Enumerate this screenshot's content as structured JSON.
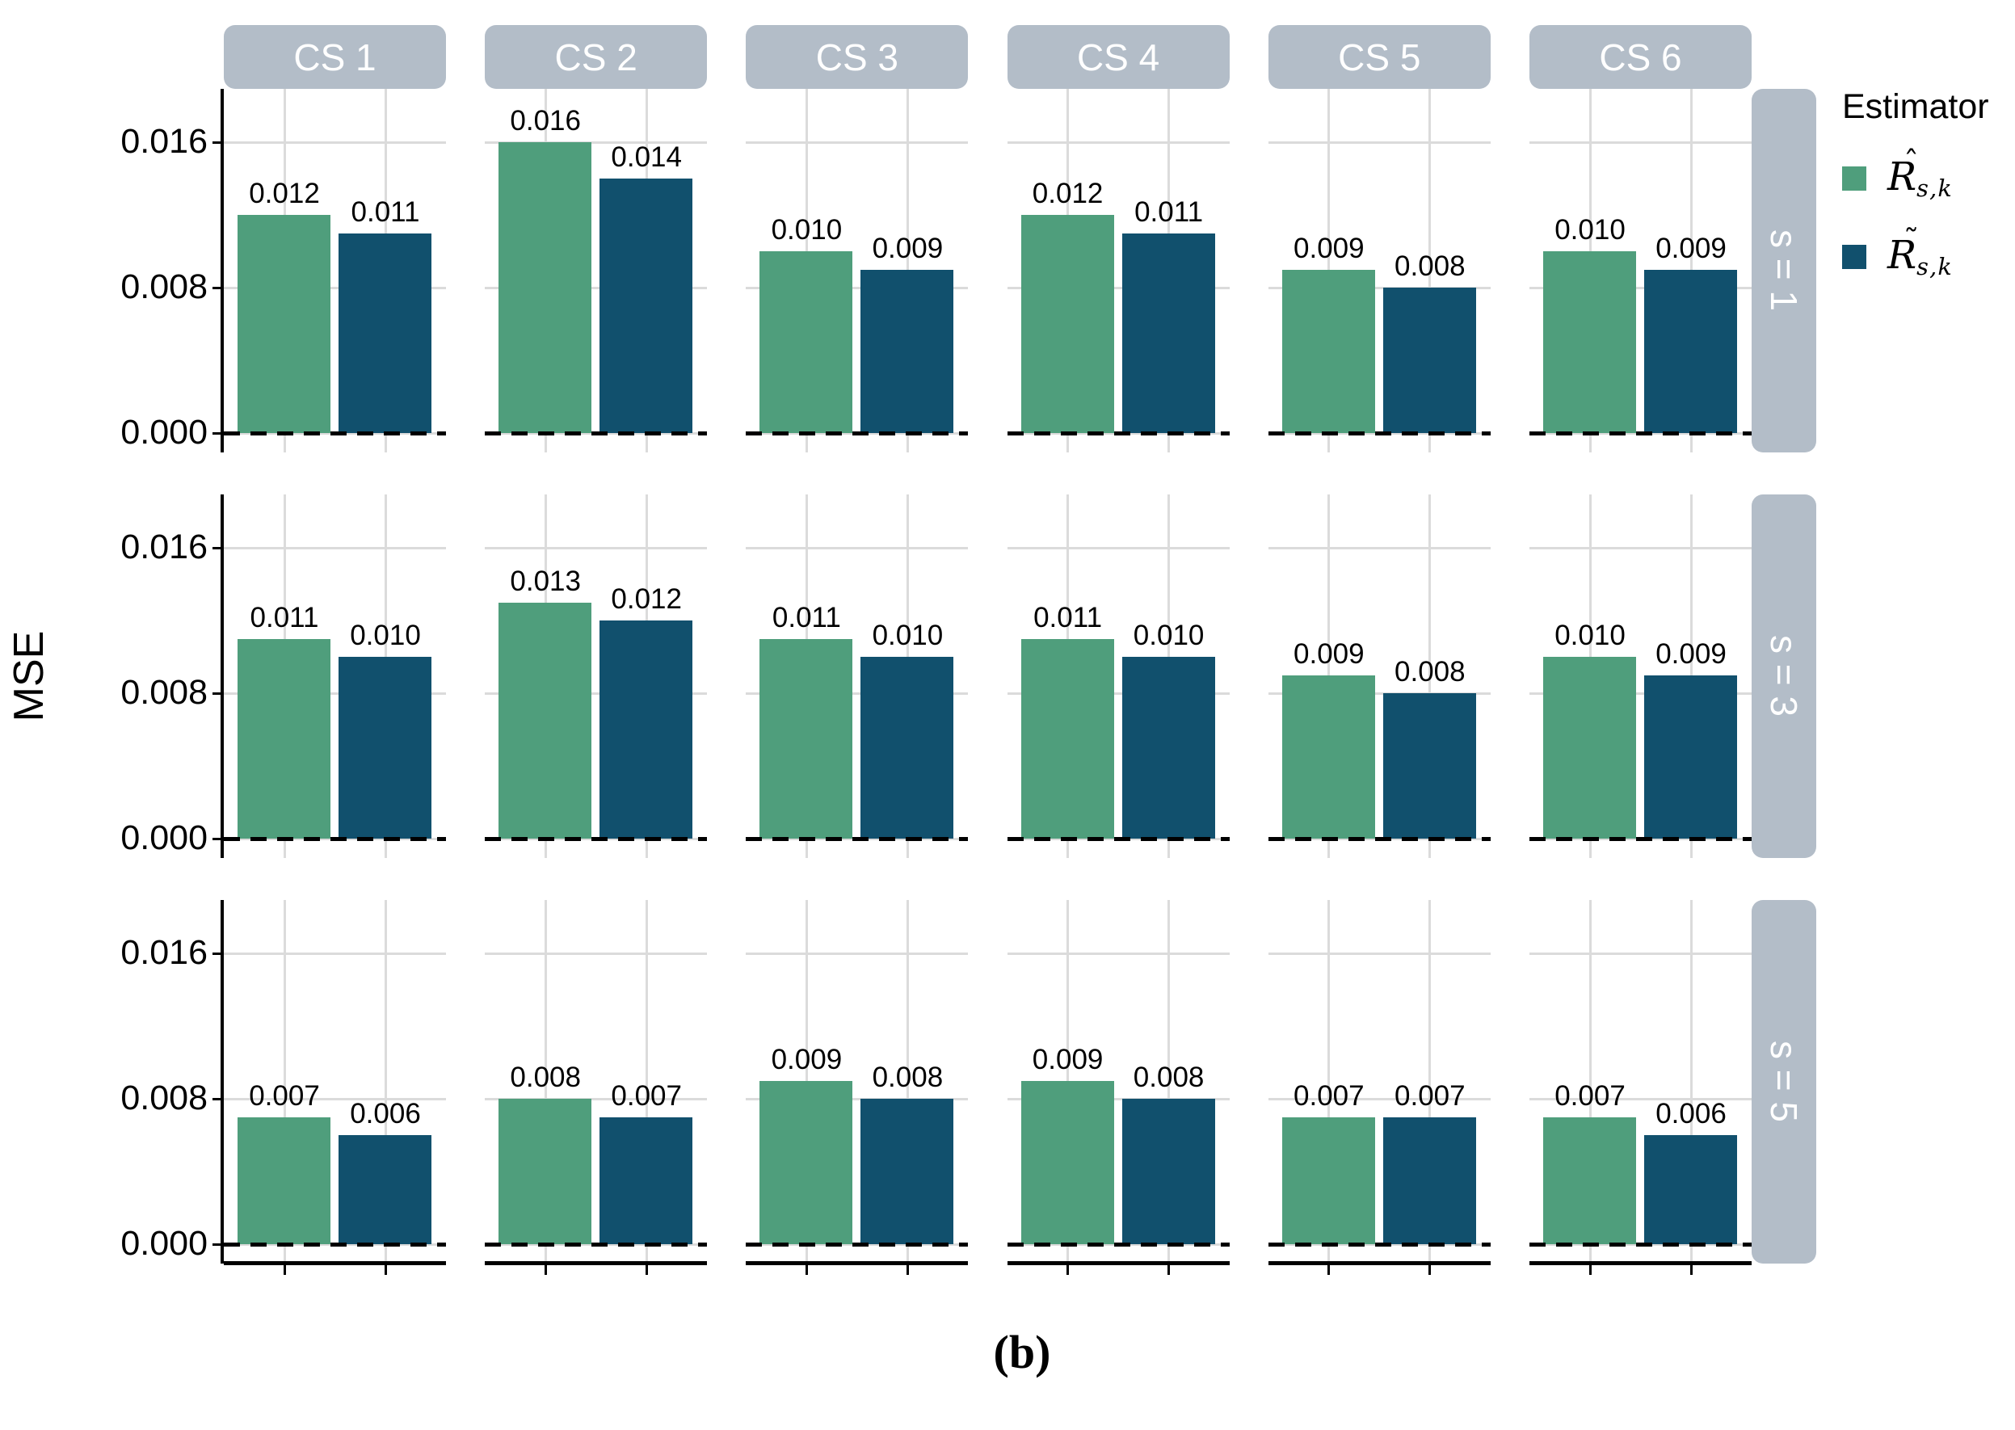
{
  "figure": {
    "ylabel": "MSE",
    "caption": "(b)",
    "y_tick_labels": [
      "0.016",
      "0.008",
      "0.000"
    ]
  },
  "legend": {
    "title": "Estimator",
    "items": [
      {
        "name": "R-hat estimator",
        "base": "R",
        "accent": "ˆ",
        "subscript": "s,k",
        "color": "#4F9E7C"
      },
      {
        "name": "R-tilde estimator",
        "base": "R",
        "accent": "˜",
        "subscript": "s,k",
        "color": "#11506D"
      }
    ]
  },
  "chart_data": {
    "type": "bar",
    "title": "",
    "ylabel": "MSE",
    "caption": "(b)",
    "facet_cols": [
      "CS 1",
      "CS 2",
      "CS 3",
      "CS 4",
      "CS 5",
      "CS 6"
    ],
    "facet_rows": [
      "s = 1",
      "s = 3",
      "s = 5"
    ],
    "y_ticks": [
      0.0,
      0.008,
      0.016
    ],
    "ylim": [
      0,
      0.019
    ],
    "grid": "major-only",
    "zero_reference_line": "black dashed",
    "legend_position": "right",
    "series": [
      {
        "name": "R-hat s,k",
        "color": "#4F9E7C",
        "values_by_row": [
          [
            0.012,
            0.016,
            0.01,
            0.012,
            0.009,
            0.01
          ],
          [
            0.011,
            0.013,
            0.011,
            0.011,
            0.009,
            0.01
          ],
          [
            0.007,
            0.008,
            0.009,
            0.009,
            0.007,
            0.007
          ]
        ]
      },
      {
        "name": "R-tilde s,k",
        "color": "#11506D",
        "values_by_row": [
          [
            0.011,
            0.014,
            0.009,
            0.011,
            0.008,
            0.009
          ],
          [
            0.01,
            0.012,
            0.01,
            0.01,
            0.008,
            0.009
          ],
          [
            0.006,
            0.007,
            0.008,
            0.008,
            0.007,
            0.006
          ]
        ]
      }
    ]
  }
}
